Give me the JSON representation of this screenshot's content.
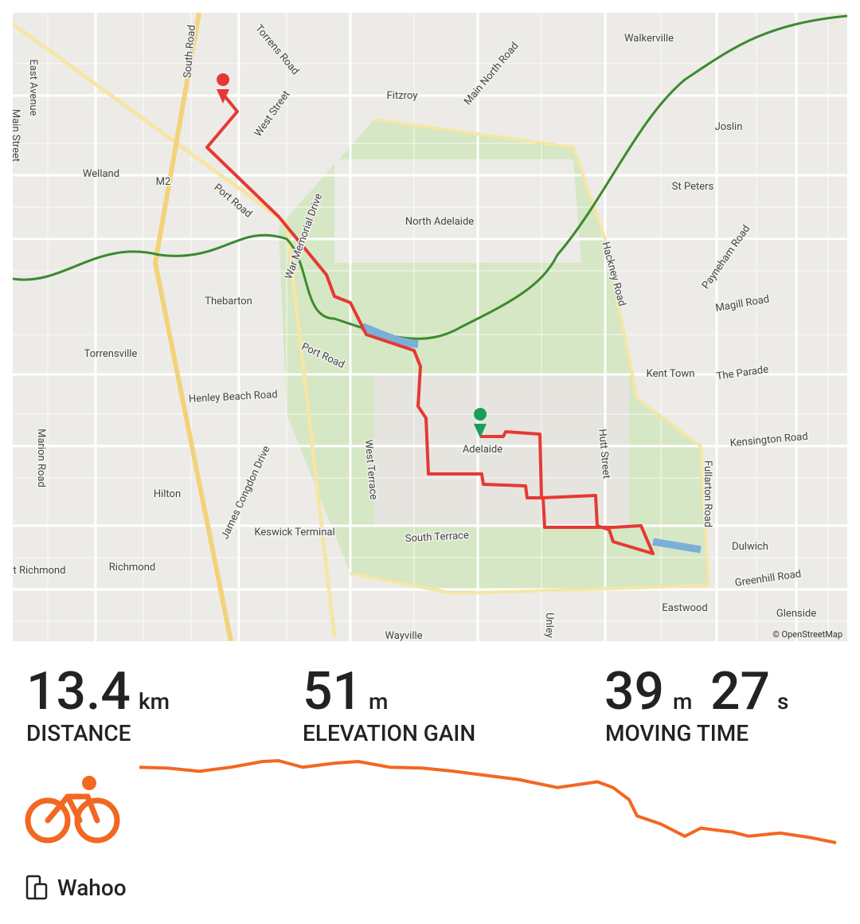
{
  "map": {
    "labels": [
      "Walkerville",
      "Torrens Road",
      "Fitzroy",
      "Main North Road",
      "Joslin",
      "West Street",
      "Welland",
      "Port Road",
      "North Adelaide",
      "St Peters",
      "Thebarton",
      "Magill Road",
      "Torrensville",
      "Kent Town",
      "The Parade",
      "Henley Beach Road",
      "Adelaide",
      "Kensington Road",
      "Marion Road",
      "Hilton",
      "Keswick Terminal",
      "South Terrace",
      "Richmond",
      "Dulwich",
      "West Richmond",
      "Greenhill Road",
      "Eastwood",
      "Glenside",
      "Wayville",
      "Hackney Road",
      "Fullarton Road",
      "Hutt Street",
      "West Terrace",
      "James Congdon Drive",
      "South Road",
      "East Avenue",
      "Main Street",
      "Unley",
      "M2",
      "War Memorial Drive",
      "Port Road",
      "Payneham Road"
    ],
    "attribution": "© OpenStreetMap"
  },
  "stats": [
    {
      "value": 13.4,
      "unit": "km",
      "label": "DISTANCE"
    },
    {
      "value": 51,
      "unit": "m",
      "label": "ELEVATION GAIN"
    },
    {
      "minutes": 39,
      "minutes_unit": "m",
      "seconds": 27,
      "seconds_unit": "s",
      "label": "MOVING TIME"
    }
  ],
  "elevation_profile": {
    "type": "line",
    "color": "#f26722",
    "x": [
      0,
      0.54,
      1.15,
      1.76,
      2.37,
      2.68,
      3.14,
      3.75,
      4.21,
      4.82,
      5.44,
      6.05,
      6.66,
      7.28,
      8.04,
      8.81,
      9.11,
      9.42,
      9.57,
      10.03,
      10.49,
      10.8,
      11.41,
      11.72,
      12.33,
      12.94,
      13.4
    ],
    "values": [
      47.5,
      47,
      45,
      47.5,
      51,
      51.5,
      47.5,
      50,
      51,
      47.5,
      47,
      45,
      42.5,
      40,
      35,
      38.5,
      35,
      27.5,
      17.5,
      12.5,
      5,
      10,
      7.5,
      5,
      7,
      4,
      1
    ]
  },
  "device": "Wahoo"
}
